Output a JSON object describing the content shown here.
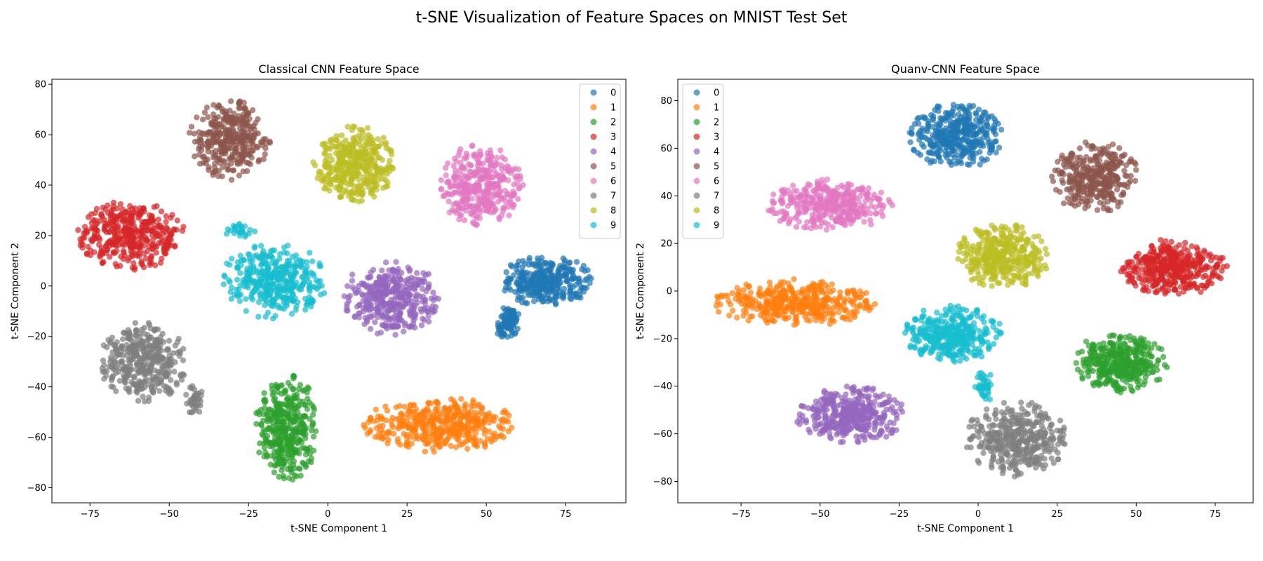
{
  "figure": {
    "title": "t-SNE Visualization of Feature Spaces on MNIST Test Set"
  },
  "colors": [
    "#1f77b4",
    "#ff7f0e",
    "#2ca02c",
    "#d62728",
    "#9467bd",
    "#8c564b",
    "#e377c2",
    "#7f7f7f",
    "#bcbd22",
    "#17becf"
  ],
  "chart_data": [
    {
      "type": "scatter",
      "title": "Classical CNN Feature Space",
      "xlabel": "t-SNE Component 1",
      "ylabel": "t-SNE Component 2",
      "xlim": [
        -87,
        94
      ],
      "ylim": [
        -86,
        82
      ],
      "xticks": [
        -75,
        -50,
        -25,
        0,
        25,
        50,
        75
      ],
      "yticks": [
        -80,
        -60,
        -40,
        -20,
        0,
        20,
        40,
        60,
        80
      ],
      "xtick_labels": [
        "−75",
        "−50",
        "−25",
        "0",
        "25",
        "50",
        "75"
      ],
      "ytick_labels": [
        "−80",
        "−60",
        "−40",
        "−20",
        "0",
        "20",
        "40",
        "60",
        "80"
      ],
      "legend_position": "top-right",
      "grid": false,
      "series": [
        {
          "name": "0",
          "color": "#1f77b4",
          "clusters": [
            {
              "cx": 69,
              "cy": 2,
              "rx": 15,
              "ry": 10,
              "n": 320
            },
            {
              "cx": 57,
              "cy": -15,
              "rx": 4,
              "ry": 8,
              "n": 90
            }
          ]
        },
        {
          "name": "1",
          "color": "#ff7f0e",
          "clusters": [
            {
              "cx": 36,
              "cy": -55,
              "rx": 25,
              "ry": 11,
              "n": 420
            }
          ]
        },
        {
          "name": "2",
          "color": "#2ca02c",
          "clusters": [
            {
              "cx": -13,
              "cy": -56,
              "rx": 10,
              "ry": 22,
              "n": 380
            }
          ]
        },
        {
          "name": "3",
          "color": "#d62728",
          "clusters": [
            {
              "cx": -62,
              "cy": 20,
              "rx": 17,
              "ry": 14,
              "n": 400
            }
          ]
        },
        {
          "name": "4",
          "color": "#9467bd",
          "clusters": [
            {
              "cx": 20,
              "cy": -5,
              "rx": 16,
              "ry": 15,
              "n": 380
            }
          ]
        },
        {
          "name": "5",
          "color": "#8c564b",
          "clusters": [
            {
              "cx": -31,
              "cy": 58,
              "rx": 13,
              "ry": 16,
              "n": 340
            }
          ]
        },
        {
          "name": "6",
          "color": "#e377c2",
          "clusters": [
            {
              "cx": 48,
              "cy": 40,
              "rx": 14,
              "ry": 16,
              "n": 360
            }
          ]
        },
        {
          "name": "7",
          "color": "#7f7f7f",
          "clusters": [
            {
              "cx": -58,
              "cy": -30,
              "rx": 14,
              "ry": 16,
              "n": 380
            },
            {
              "cx": -42,
              "cy": -45,
              "rx": 3,
              "ry": 6,
              "n": 40
            }
          ]
        },
        {
          "name": "8",
          "color": "#bcbd22",
          "clusters": [
            {
              "cx": 8,
              "cy": 48,
              "rx": 13,
              "ry": 16,
              "n": 380
            }
          ]
        },
        {
          "name": "9",
          "color": "#17becf",
          "clusters": [
            {
              "cx": -17,
              "cy": 2,
              "rx": 17,
              "ry": 15,
              "n": 380
            },
            {
              "cx": -28,
              "cy": 22,
              "rx": 5,
              "ry": 3,
              "n": 25
            }
          ]
        }
      ]
    },
    {
      "type": "scatter",
      "title": "Quanv-CNN Feature Space",
      "xlabel": "t-SNE Component 1",
      "ylabel": "t-SNE Component 2",
      "xlim": [
        -95,
        87
      ],
      "ylim": [
        -89,
        89
      ],
      "xticks": [
        -75,
        -50,
        -25,
        0,
        25,
        50,
        75
      ],
      "yticks": [
        -80,
        -60,
        -40,
        -20,
        0,
        20,
        40,
        60,
        80
      ],
      "xtick_labels": [
        "−75",
        "−50",
        "−25",
        "0",
        "25",
        "50",
        "75"
      ],
      "ytick_labels": [
        "−80",
        "−60",
        "−40",
        "−20",
        "0",
        "20",
        "40",
        "60",
        "80"
      ],
      "legend_position": "top-left",
      "grid": false,
      "series": [
        {
          "name": "0",
          "color": "#1f77b4",
          "clusters": [
            {
              "cx": -7,
              "cy": 65,
              "rx": 15,
              "ry": 14,
              "n": 380
            }
          ]
        },
        {
          "name": "1",
          "color": "#ff7f0e",
          "clusters": [
            {
              "cx": -58,
              "cy": -5,
              "rx": 26,
              "ry": 10,
              "n": 400
            }
          ]
        },
        {
          "name": "2",
          "color": "#2ca02c",
          "clusters": [
            {
              "cx": 45,
              "cy": -30,
              "rx": 15,
              "ry": 13,
              "n": 380
            }
          ]
        },
        {
          "name": "3",
          "color": "#d62728",
          "clusters": [
            {
              "cx": 62,
              "cy": 10,
              "rx": 17,
              "ry": 12,
              "n": 400
            }
          ]
        },
        {
          "name": "4",
          "color": "#9467bd",
          "clusters": [
            {
              "cx": -40,
              "cy": -52,
              "rx": 18,
              "ry": 12,
              "n": 380
            }
          ]
        },
        {
          "name": "5",
          "color": "#8c564b",
          "clusters": [
            {
              "cx": 37,
              "cy": 48,
              "rx": 14,
              "ry": 16,
              "n": 340
            }
          ]
        },
        {
          "name": "6",
          "color": "#e377c2",
          "clusters": [
            {
              "cx": -47,
              "cy": 36,
              "rx": 20,
              "ry": 11,
              "n": 380
            }
          ]
        },
        {
          "name": "7",
          "color": "#7f7f7f",
          "clusters": [
            {
              "cx": 12,
              "cy": -62,
              "rx": 16,
              "ry": 16,
              "n": 380
            }
          ]
        },
        {
          "name": "8",
          "color": "#bcbd22",
          "clusters": [
            {
              "cx": 8,
              "cy": 15,
              "rx": 15,
              "ry": 14,
              "n": 360
            }
          ]
        },
        {
          "name": "9",
          "color": "#17becf",
          "clusters": [
            {
              "cx": -8,
              "cy": -18,
              "rx": 16,
              "ry": 12,
              "n": 360
            },
            {
              "cx": 2,
              "cy": -40,
              "rx": 3,
              "ry": 7,
              "n": 40
            }
          ]
        }
      ]
    }
  ]
}
